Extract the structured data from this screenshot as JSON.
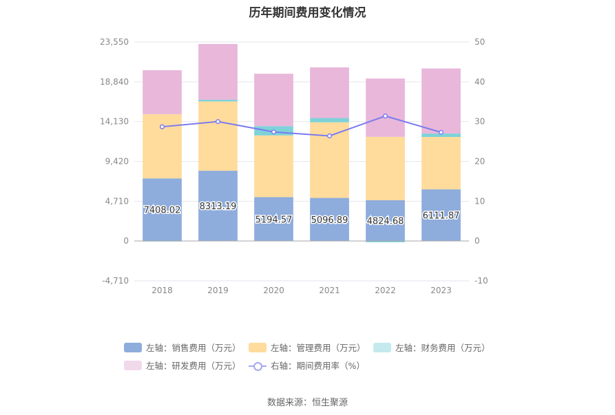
{
  "title": "历年期间费用变化情况",
  "source": "数据来源：恒生聚源",
  "legend": [
    {
      "label": "左轴：销售费用（万元）",
      "color": "#8eacdc",
      "kind": "bar"
    },
    {
      "label": "左轴：管理费用（万元）",
      "color": "#ffdb9c",
      "kind": "bar"
    },
    {
      "label": "左轴：财务费用（万元）",
      "color": "#7ed2d8",
      "kind": "bar"
    },
    {
      "label": "左轴：研发费用（万元）",
      "color": "#e8b7da",
      "kind": "bar"
    },
    {
      "label": "右轴：期间费用率（%）",
      "color": "#7b7bef",
      "kind": "line"
    }
  ],
  "chart_data": {
    "type": "bar",
    "stacked": true,
    "categories": [
      "2018",
      "2019",
      "2020",
      "2021",
      "2022",
      "2023"
    ],
    "series": [
      {
        "name": "左轴：销售费用（万元）",
        "axis": "left",
        "color": "#8eacdc",
        "values": [
          7408.02,
          8313.19,
          5194.57,
          5096.89,
          4824.68,
          6111.87
        ],
        "labels": [
          "7408.02",
          "8313.19",
          "5194.57",
          "5096.89",
          "4824.68",
          "6111.87"
        ]
      },
      {
        "name": "左轴：管理费用（万元）",
        "axis": "left",
        "color": "#ffdb9c",
        "values": [
          7600,
          8200,
          7300,
          8950,
          7500,
          6200
        ]
      },
      {
        "name": "左轴：财务费用（万元）",
        "axis": "left",
        "color": "#7ed2d8",
        "values": [
          -60,
          200,
          1100,
          500,
          -150,
          400
        ]
      },
      {
        "name": "左轴：研发费用（万元）",
        "axis": "left",
        "color": "#e8b7da",
        "values": [
          5200,
          6600,
          6200,
          6000,
          6900,
          7700
        ]
      },
      {
        "name": "右轴：期间费用率（%）",
        "axis": "right",
        "type": "line",
        "color": "#7b7bef",
        "values": [
          28.7,
          30.0,
          27.4,
          26.4,
          31.4,
          27.3
        ]
      }
    ],
    "left_axis": {
      "min": -4710,
      "max": 23550,
      "ticks": [
        -4710,
        0,
        4710,
        9420,
        14130,
        18840,
        23550
      ],
      "tick_labels": [
        "-4,710",
        "0",
        "4,710",
        "9,420",
        "14,130",
        "18,840",
        "23,550"
      ]
    },
    "right_axis": {
      "min": -10,
      "max": 50,
      "ticks": [
        -10,
        0,
        10,
        20,
        30,
        40,
        50
      ],
      "tick_labels": [
        "-10",
        "0",
        "10",
        "20",
        "30",
        "40",
        "50"
      ]
    },
    "grid": true,
    "legend_position": "bottom"
  }
}
